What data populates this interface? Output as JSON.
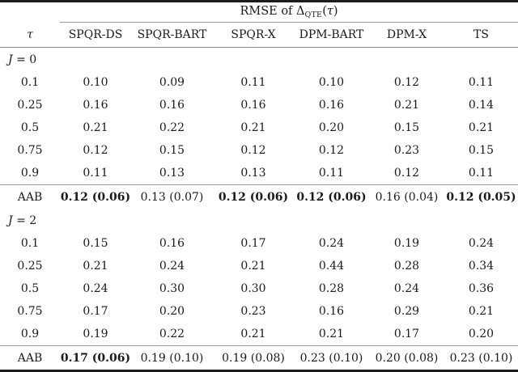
{
  "table": {
    "title": {
      "prefix": "RMSE of",
      "delta": "Δ",
      "hat": "ˆ",
      "sub": "QTE",
      "open_paren": "(",
      "tau": "τ",
      "close_paren": ")"
    },
    "columns": [
      "τ",
      "SPQR-DS",
      "SPQR-BART",
      "SPQR-X",
      "DPM-BART",
      "DPM-X",
      "TS"
    ],
    "sections": [
      {
        "label_var": "J",
        "label_rest": " = 0",
        "rows": [
          {
            "tau": "0.1",
            "values": [
              "0.10",
              "0.09",
              "0.11",
              "0.10",
              "0.12",
              "0.11"
            ]
          },
          {
            "tau": "0.25",
            "values": [
              "0.16",
              "0.16",
              "0.16",
              "0.16",
              "0.21",
              "0.14"
            ]
          },
          {
            "tau": "0.5",
            "values": [
              "0.21",
              "0.22",
              "0.21",
              "0.20",
              "0.15",
              "0.21"
            ]
          },
          {
            "tau": "0.75",
            "values": [
              "0.12",
              "0.15",
              "0.12",
              "0.12",
              "0.23",
              "0.15"
            ]
          },
          {
            "tau": "0.9",
            "values": [
              "0.11",
              "0.13",
              "0.13",
              "0.11",
              "0.12",
              "0.11"
            ]
          }
        ],
        "aab": {
          "label": "AAB",
          "values": [
            "0.12 (0.06)",
            "0.13 (0.07)",
            "0.12 (0.06)",
            "0.12 (0.06)",
            "0.16 (0.04)",
            "0.12 (0.05)"
          ],
          "bold": [
            true,
            false,
            true,
            true,
            false,
            true
          ]
        }
      },
      {
        "label_var": "J",
        "label_rest": " = 2",
        "rows": [
          {
            "tau": "0.1",
            "values": [
              "0.15",
              "0.16",
              "0.17",
              "0.24",
              "0.19",
              "0.24"
            ]
          },
          {
            "tau": "0.25",
            "values": [
              "0.21",
              "0.24",
              "0.21",
              "0.44",
              "0.28",
              "0.34"
            ]
          },
          {
            "tau": "0.5",
            "values": [
              "0.24",
              "0.30",
              "0.30",
              "0.28",
              "0.24",
              "0.36"
            ]
          },
          {
            "tau": "0.75",
            "values": [
              "0.17",
              "0.20",
              "0.23",
              "0.16",
              "0.29",
              "0.21"
            ]
          },
          {
            "tau": "0.9",
            "values": [
              "0.19",
              "0.22",
              "0.21",
              "0.21",
              "0.17",
              "0.20"
            ]
          }
        ],
        "aab": {
          "label": "AAB",
          "values": [
            "0.17 (0.06)",
            "0.19 (0.10)",
            "0.19 (0.08)",
            "0.23 (0.10)",
            "0.20 (0.08)",
            "0.23 (0.10)"
          ],
          "bold": [
            true,
            false,
            false,
            false,
            false,
            false
          ]
        }
      }
    ]
  }
}
